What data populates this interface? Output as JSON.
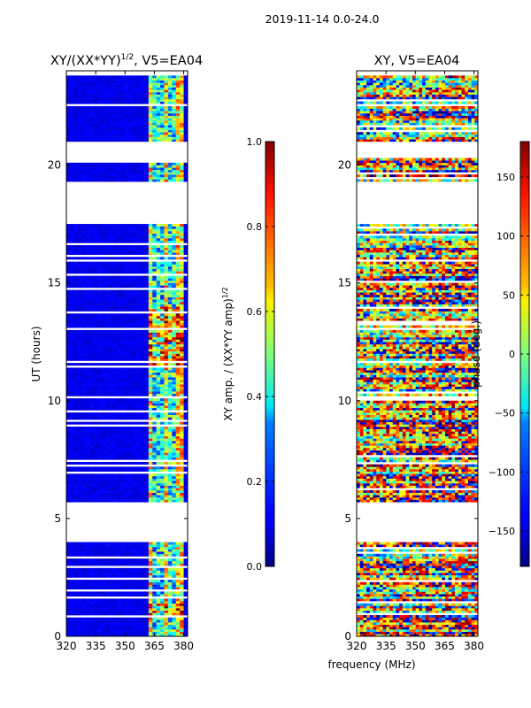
{
  "suptitle": "2019-11-14 0.0-24.0",
  "shared_xlabel": "frequency (MHz)",
  "chart_data": [
    {
      "type": "heatmap",
      "title_main": "XY/(XX*YY)",
      "title_sup": "1/2",
      "title_rest": ", V5=EA04",
      "ylabel": "UT (hours)",
      "xlim": [
        320,
        382
      ],
      "ylim": [
        0,
        24
      ],
      "xticks": [
        320,
        335,
        350,
        365,
        380
      ],
      "yticks": [
        0,
        5,
        10,
        15,
        20
      ],
      "ytick_labels": [
        "0",
        "5",
        "10",
        "15",
        "20"
      ],
      "colorbar": {
        "label_main": "XY amp. / (XX*YY amp)",
        "label_sup": "1/2",
        "range": [
          0.0,
          1.0
        ],
        "ticks": [
          0.0,
          0.2,
          0.4,
          0.6,
          0.8,
          1.0
        ],
        "tick_labels": [
          "0.0",
          "0.2",
          "0.4",
          "0.6",
          "0.8",
          "1.0"
        ]
      },
      "data_gaps_hours": [
        [
          4.0,
          5.7
        ],
        [
          17.5,
          19.3
        ],
        [
          20.3,
          21.0
        ],
        [
          23.8,
          24.0
        ]
      ],
      "active_band_mhz": [
        362,
        380
      ],
      "background_level": 0.08
    },
    {
      "type": "heatmap",
      "title_main": "XY, V5=EA04",
      "ylabel": "",
      "xlim": [
        320,
        382
      ],
      "ylim": [
        0,
        24
      ],
      "xticks": [
        320,
        335,
        350,
        365,
        380
      ],
      "yticks": [
        0,
        5,
        10,
        15,
        20
      ],
      "ytick_labels": [
        "0",
        "5",
        "10",
        "15",
        "20"
      ],
      "colorbar": {
        "label_main": "phase (deg.)",
        "range": [
          -180,
          180
        ],
        "ticks": [
          -150,
          -100,
          -50,
          0,
          50,
          100,
          150
        ],
        "tick_labels": [
          "−150",
          "−100",
          "−50",
          "0",
          "50",
          "100",
          "150"
        ]
      },
      "data_gaps_hours": [
        [
          4.0,
          5.7
        ],
        [
          17.5,
          19.3
        ],
        [
          20.3,
          21.0
        ],
        [
          23.8,
          24.0
        ]
      ]
    }
  ]
}
